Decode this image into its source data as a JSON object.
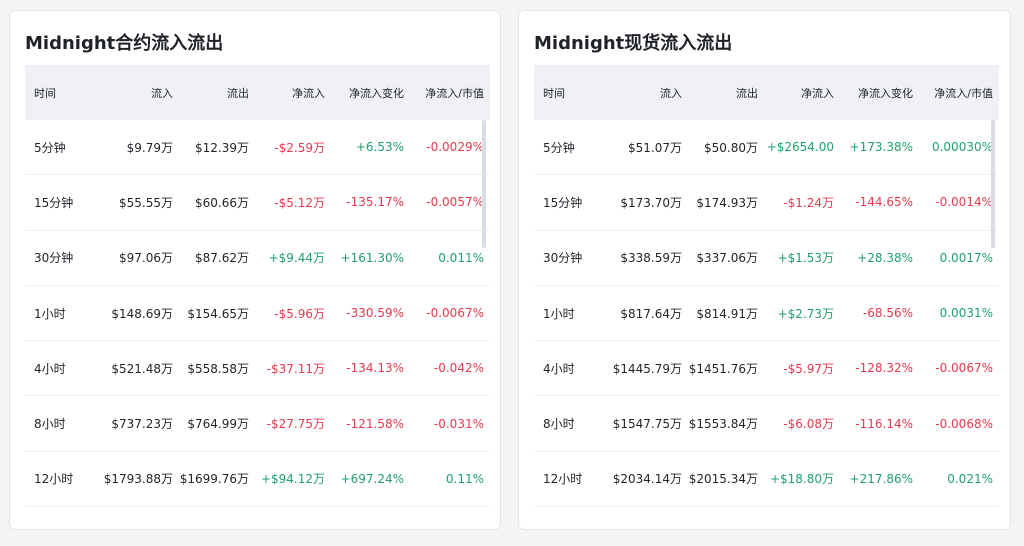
{
  "colors": {
    "positive": "#20a16c",
    "negative": "#e6394f",
    "header_bg": "#eff1f5"
  },
  "left": {
    "title": "Midnight合约流入流出",
    "headers": [
      "时间",
      "流入",
      "流出",
      "净流入",
      "净流入变化",
      "净流入/市值"
    ],
    "rows": [
      {
        "time": "5分钟",
        "inflow": "$9.79万",
        "outflow": "$12.39万",
        "net": "-$2.59万",
        "change": "+6.53%",
        "ratio": "-0.0029%"
      },
      {
        "time": "15分钟",
        "inflow": "$55.55万",
        "outflow": "$60.66万",
        "net": "-$5.12万",
        "change": "-135.17%",
        "ratio": "-0.0057%"
      },
      {
        "time": "30分钟",
        "inflow": "$97.06万",
        "outflow": "$87.62万",
        "net": "+$9.44万",
        "change": "+161.30%",
        "ratio": "0.011%"
      },
      {
        "time": "1小时",
        "inflow": "$148.69万",
        "outflow": "$154.65万",
        "net": "-$5.96万",
        "change": "-330.59%",
        "ratio": "-0.0067%"
      },
      {
        "time": "4小时",
        "inflow": "$521.48万",
        "outflow": "$558.58万",
        "net": "-$37.11万",
        "change": "-134.13%",
        "ratio": "-0.042%"
      },
      {
        "time": "8小时",
        "inflow": "$737.23万",
        "outflow": "$764.99万",
        "net": "-$27.75万",
        "change": "-121.58%",
        "ratio": "-0.031%"
      },
      {
        "time": "12小时",
        "inflow": "$1793.88万",
        "outflow": "$1699.76万",
        "net": "+$94.12万",
        "change": "+697.24%",
        "ratio": "0.11%"
      }
    ]
  },
  "right": {
    "title": "Midnight现货流入流出",
    "headers": [
      "时间",
      "流入",
      "流出",
      "净流入",
      "净流入变化",
      "净流入/市值"
    ],
    "rows": [
      {
        "time": "5分钟",
        "inflow": "$51.07万",
        "outflow": "$50.80万",
        "net": "+$2654.00",
        "change": "+173.38%",
        "ratio": "0.00030%"
      },
      {
        "time": "15分钟",
        "inflow": "$173.70万",
        "outflow": "$174.93万",
        "net": "-$1.24万",
        "change": "-144.65%",
        "ratio": "-0.0014%"
      },
      {
        "time": "30分钟",
        "inflow": "$338.59万",
        "outflow": "$337.06万",
        "net": "+$1.53万",
        "change": "+28.38%",
        "ratio": "0.0017%"
      },
      {
        "time": "1小时",
        "inflow": "$817.64万",
        "outflow": "$814.91万",
        "net": "+$2.73万",
        "change": "-68.56%",
        "ratio": "0.0031%"
      },
      {
        "time": "4小时",
        "inflow": "$1445.79万",
        "outflow": "$1451.76万",
        "net": "-$5.97万",
        "change": "-128.32%",
        "ratio": "-0.0067%"
      },
      {
        "time": "8小时",
        "inflow": "$1547.75万",
        "outflow": "$1553.84万",
        "net": "-$6.08万",
        "change": "-116.14%",
        "ratio": "-0.0068%"
      },
      {
        "time": "12小时",
        "inflow": "$2034.14万",
        "outflow": "$2015.34万",
        "net": "+$18.80万",
        "change": "+217.86%",
        "ratio": "0.021%"
      }
    ]
  }
}
